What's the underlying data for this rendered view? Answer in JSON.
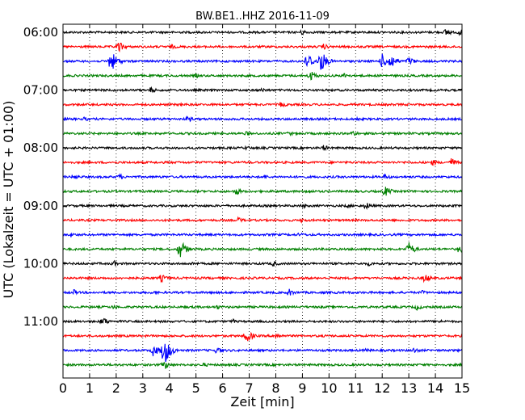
{
  "chart_data": {
    "type": "line",
    "title": "BW.BE1..HHZ 2016-11-09",
    "xlabel": "Zeit  [min]",
    "ylabel": "UTC (Lokalzeit = UTC + 01:00)",
    "xlim": [
      0,
      15
    ],
    "x_ticks": [
      "0",
      "1",
      "2",
      "3",
      "4",
      "5",
      "6",
      "7",
      "8",
      "9",
      "10",
      "11",
      "12",
      "13",
      "14",
      "15"
    ],
    "y_ticks": [
      "06:00",
      "07:00",
      "08:00",
      "09:00",
      "10:00",
      "11:00"
    ],
    "grid": "vertical-dotted",
    "trace_interval_min": 15,
    "trace_colors": [
      "#000000",
      "#ff0000",
      "#0000ff",
      "#008000"
    ],
    "traces": [
      {
        "start": "06:00",
        "color": "#000000",
        "events": [
          [
            9.0,
            4
          ],
          [
            14.4,
            5
          ],
          [
            14.9,
            4
          ]
        ]
      },
      {
        "start": "06:15",
        "color": "#ff0000",
        "events": [
          [
            2.1,
            7
          ],
          [
            4.1,
            3
          ],
          [
            9.8,
            4
          ]
        ]
      },
      {
        "start": "06:30",
        "color": "#0000ff",
        "events": [
          [
            1.8,
            14
          ],
          [
            9.2,
            11
          ],
          [
            9.7,
            14
          ],
          [
            12.0,
            9
          ],
          [
            12.3,
            11
          ],
          [
            13.0,
            6
          ]
        ]
      },
      {
        "start": "06:45",
        "color": "#008000",
        "events": [
          [
            5.0,
            3
          ],
          [
            9.3,
            7
          ],
          [
            10.6,
            4
          ]
        ]
      },
      {
        "start": "07:00",
        "color": "#000000",
        "events": [
          [
            3.3,
            4
          ],
          [
            7.5,
            3
          ]
        ]
      },
      {
        "start": "07:15",
        "color": "#ff0000",
        "events": [
          [
            4.5,
            3
          ],
          [
            8.2,
            4
          ]
        ]
      },
      {
        "start": "07:30",
        "color": "#0000ff",
        "events": [
          [
            0.8,
            3
          ],
          [
            4.7,
            4
          ],
          [
            11.0,
            3
          ]
        ]
      },
      {
        "start": "07:45",
        "color": "#008000",
        "events": [
          [
            6.9,
            3
          ],
          [
            8.5,
            3
          ],
          [
            10.9,
            4
          ]
        ]
      },
      {
        "start": "08:00",
        "color": "#000000",
        "events": [
          [
            6.9,
            3
          ],
          [
            9.8,
            4
          ]
        ]
      },
      {
        "start": "08:15",
        "color": "#ff0000",
        "events": [
          [
            13.9,
            4
          ],
          [
            14.6,
            6
          ]
        ]
      },
      {
        "start": "08:30",
        "color": "#0000ff",
        "events": [
          [
            0.4,
            4
          ],
          [
            2.1,
            4
          ],
          [
            7.6,
            3
          ],
          [
            12.1,
            4
          ]
        ]
      },
      {
        "start": "08:45",
        "color": "#008000",
        "events": [
          [
            6.5,
            5
          ],
          [
            9.2,
            4
          ],
          [
            12.1,
            7
          ]
        ]
      },
      {
        "start": "09:00",
        "color": "#000000",
        "events": [
          [
            9.0,
            3
          ],
          [
            10.7,
            3
          ],
          [
            11.4,
            5
          ]
        ]
      },
      {
        "start": "09:15",
        "color": "#ff0000",
        "events": [
          [
            6.6,
            4
          ],
          [
            9.0,
            3
          ]
        ]
      },
      {
        "start": "09:30",
        "color": "#0000ff",
        "events": [
          [
            0.3,
            3
          ],
          [
            8.9,
            3
          ]
        ]
      },
      {
        "start": "09:45",
        "color": "#008000",
        "events": [
          [
            4.4,
            12
          ],
          [
            13.0,
            9
          ],
          [
            14.9,
            6
          ]
        ]
      },
      {
        "start": "10:00",
        "color": "#000000",
        "events": [
          [
            1.9,
            4
          ],
          [
            4.9,
            3
          ],
          [
            7.9,
            4
          ],
          [
            11.5,
            3
          ]
        ]
      },
      {
        "start": "10:15",
        "color": "#ff0000",
        "events": [
          [
            3.7,
            5
          ],
          [
            13.6,
            6
          ]
        ]
      },
      {
        "start": "10:30",
        "color": "#0000ff",
        "events": [
          [
            0.4,
            4
          ],
          [
            3.4,
            3
          ],
          [
            8.5,
            5
          ],
          [
            13.5,
            3
          ]
        ]
      },
      {
        "start": "10:45",
        "color": "#008000",
        "events": [
          [
            1.9,
            3
          ],
          [
            5.8,
            3
          ],
          [
            13.3,
            4
          ]
        ]
      },
      {
        "start": "11:00",
        "color": "#000000",
        "events": [
          [
            1.5,
            6
          ],
          [
            6.4,
            3
          ],
          [
            14.1,
            3
          ]
        ]
      },
      {
        "start": "11:15",
        "color": "#ff0000",
        "events": [
          [
            6.9,
            9
          ],
          [
            8.0,
            5
          ]
        ]
      },
      {
        "start": "11:30",
        "color": "#0000ff",
        "events": [
          [
            3.4,
            8
          ],
          [
            3.8,
            20
          ],
          [
            5.8,
            5
          ],
          [
            11.4,
            3
          ],
          [
            13.2,
            4
          ]
        ]
      },
      {
        "start": "11:45",
        "color": "#008000",
        "events": [
          [
            3.8,
            6
          ],
          [
            5.3,
            3
          ]
        ]
      }
    ]
  }
}
